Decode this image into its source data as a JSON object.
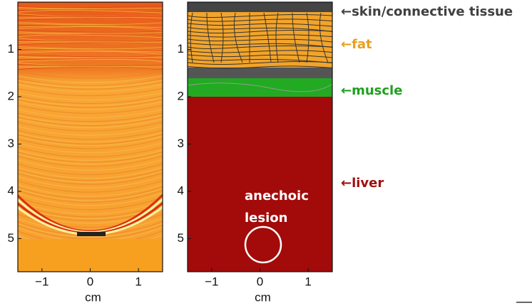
{
  "panels": [
    {
      "xlim": [
        -1.5,
        1.5
      ],
      "ylim": [
        0,
        5.7
      ],
      "xticks": [
        {
          "value": -1,
          "label": "−1"
        },
        0,
        1
      ],
      "yticks": [
        1,
        2,
        3,
        4,
        5
      ],
      "x_label": "cm"
    },
    {
      "xlim": [
        -1.5,
        1.5
      ],
      "ylim": [
        0,
        5.7
      ],
      "xticks": [
        {
          "value": -1,
          "label": "−1"
        },
        0,
        1
      ],
      "yticks": [
        1,
        2,
        3,
        4,
        5
      ],
      "x_label": "cm",
      "lesion_label": [
        "anechoic",
        "lesion"
      ]
    }
  ],
  "annotations": [
    {
      "text": "←skin/connective tissue",
      "color": "#404040"
    },
    {
      "text": "←fat",
      "color": "#e8a020"
    },
    {
      "text": "←muscle",
      "color": "#1fa01f"
    },
    {
      "text": "←liver",
      "color": "#a01010"
    }
  ]
}
